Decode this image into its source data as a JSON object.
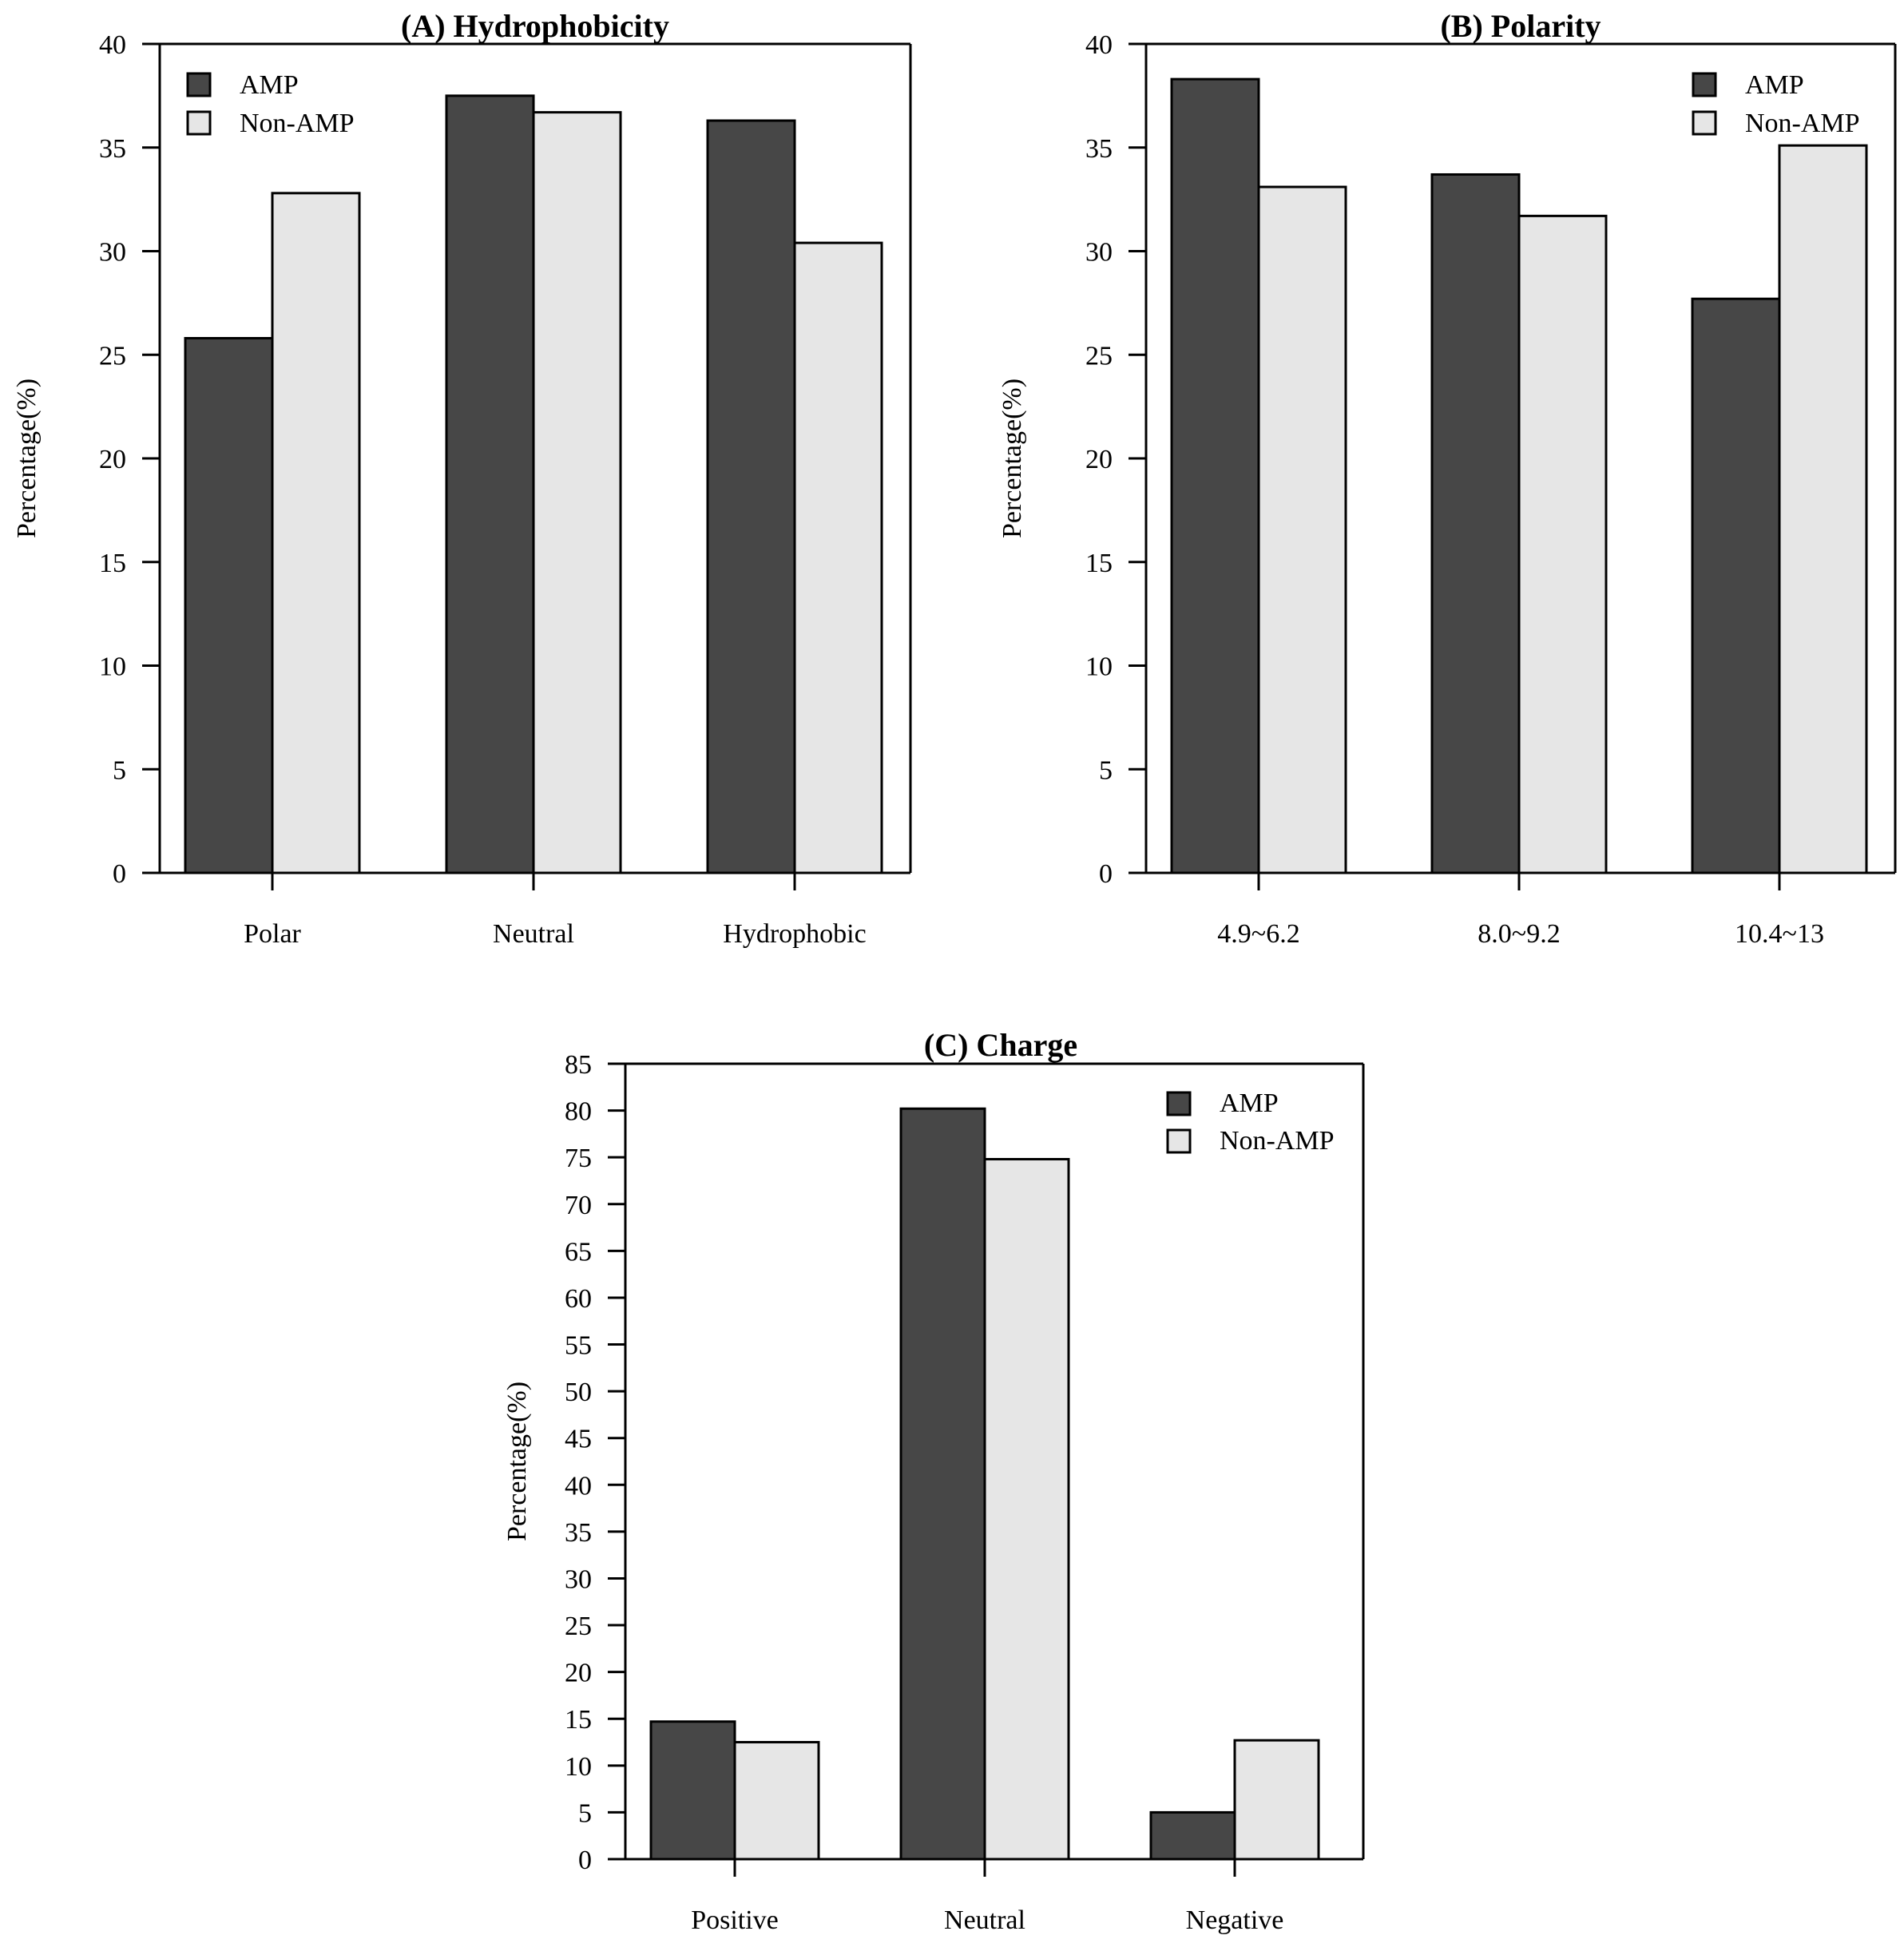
{
  "chart_data": [
    {
      "type": "bar",
      "title": "(A) Hydrophobicity",
      "xlabel": "",
      "ylabel": "Percentage(%)",
      "categories": [
        "Polar",
        "Neutral",
        "Hydrophobic"
      ],
      "series": [
        {
          "name": "AMP",
          "values": [
            25.8,
            37.5,
            36.3
          ]
        },
        {
          "name": "Non-AMP",
          "values": [
            32.8,
            36.7,
            30.4
          ]
        }
      ],
      "ylim": [
        0,
        40
      ],
      "yticks": [
        "0",
        "5",
        "10",
        "15",
        "20",
        "25",
        "30",
        "35",
        "40"
      ],
      "legend_position": "top-left",
      "grid": false
    },
    {
      "type": "bar",
      "title": "(B) Polarity",
      "xlabel": "",
      "ylabel": "Percentage(%)",
      "categories": [
        "4.9~6.2",
        "8.0~9.2",
        "10.4~13"
      ],
      "series": [
        {
          "name": "AMP",
          "values": [
            38.3,
            33.7,
            27.7
          ]
        },
        {
          "name": "Non-AMP",
          "values": [
            33.1,
            31.7,
            35.1
          ]
        }
      ],
      "ylim": [
        0,
        40
      ],
      "yticks": [
        "0",
        "5",
        "10",
        "15",
        "20",
        "25",
        "30",
        "35",
        "40"
      ],
      "legend_position": "top-right",
      "grid": false
    },
    {
      "type": "bar",
      "title": "(C) Charge",
      "xlabel": "",
      "ylabel": "Percentage(%)",
      "categories": [
        "Positive",
        "Neutral",
        "Negative"
      ],
      "series": [
        {
          "name": "AMP",
          "values": [
            14.7,
            80.2,
            5.0
          ]
        },
        {
          "name": "Non-AMP",
          "values": [
            12.5,
            74.8,
            12.7
          ]
        }
      ],
      "ylim": [
        0,
        85
      ],
      "yticks": [
        "0",
        "5",
        "10",
        "15",
        "20",
        "25",
        "30",
        "35",
        "40",
        "45",
        "50",
        "55",
        "60",
        "65",
        "70",
        "75",
        "80",
        "85"
      ],
      "legend_position": "top-right",
      "grid": false
    }
  ],
  "colors": {
    "AMP": "#474747",
    "Non-AMP": "#e6e6e6",
    "axis": "#000000"
  }
}
